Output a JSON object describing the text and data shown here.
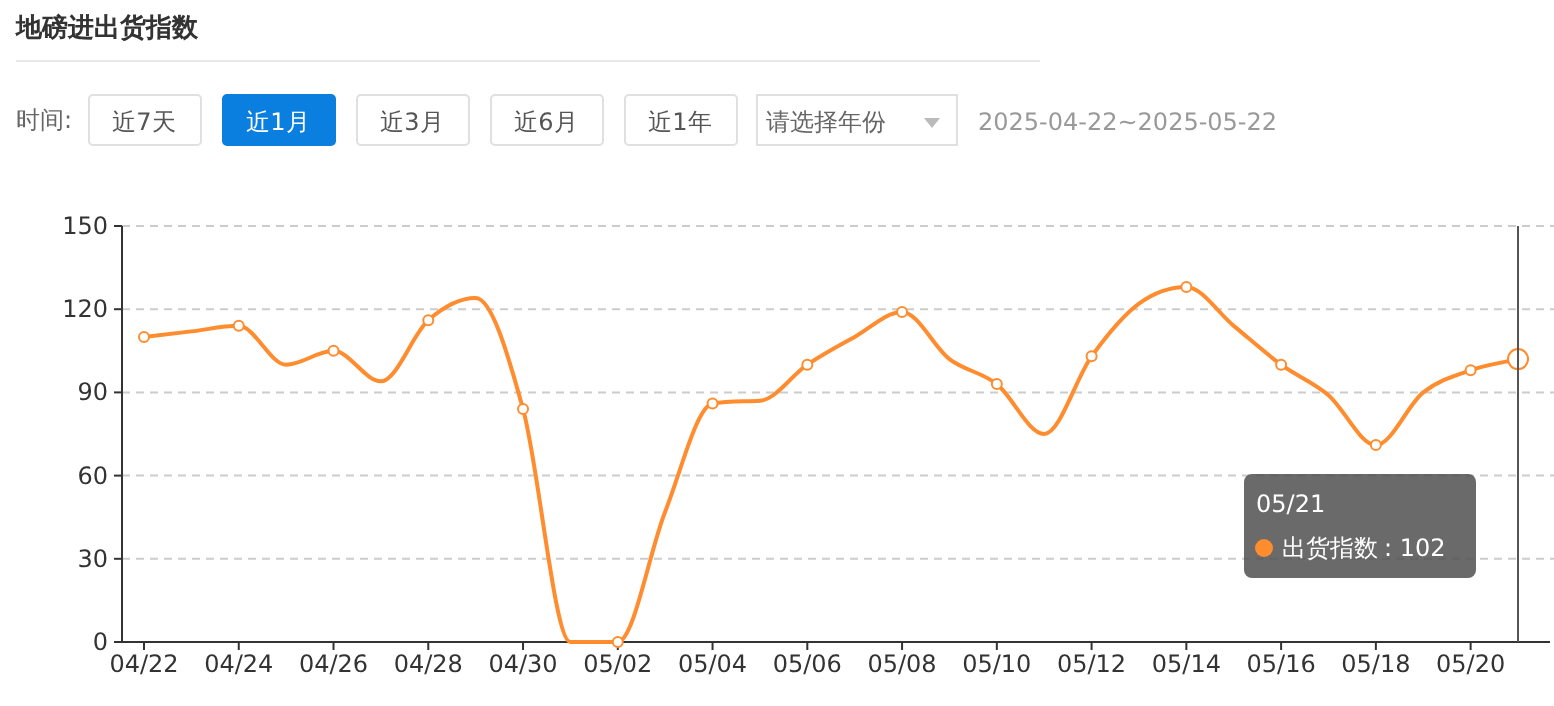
{
  "chart_data": {
    "type": "line",
    "title": "地磅进出货指数",
    "annotations": [
      "时间:",
      "近7天",
      "近1月",
      "近3月",
      "近6月",
      "近1年",
      "请选择年份",
      "2025-04-22~2025-05-22",
      "05/21",
      ": 102"
    ],
    "categories": [
      "04/22",
      null,
      "04/24",
      null,
      "04/26",
      null,
      "04/28",
      null,
      "04/30",
      null,
      "05/02",
      null,
      "05/04",
      null,
      "05/06",
      null,
      "05/08",
      null,
      "05/10",
      null,
      "05/12",
      null,
      "05/14",
      null,
      "05/16",
      null,
      "05/18",
      null,
      "05/20",
      null
    ],
    "series": [
      {
        "name": "出货指数",
        "color": "#ff8c2e",
        "values": [
          110,
          112,
          114,
          100,
          105,
          94,
          116,
          124,
          84,
          0,
          0,
          47,
          86,
          87,
          100,
          110,
          119,
          102,
          93,
          75,
          103,
          122,
          128,
          114,
          100,
          89,
          71,
          90,
          98,
          102
        ]
      }
    ],
    "ylim": [
      0,
      150
    ],
    "yticks": [
      0,
      30,
      60,
      90,
      120,
      150
    ],
    "grid": "y",
    "marker": "circle",
    "line_style": "solid"
  }
}
